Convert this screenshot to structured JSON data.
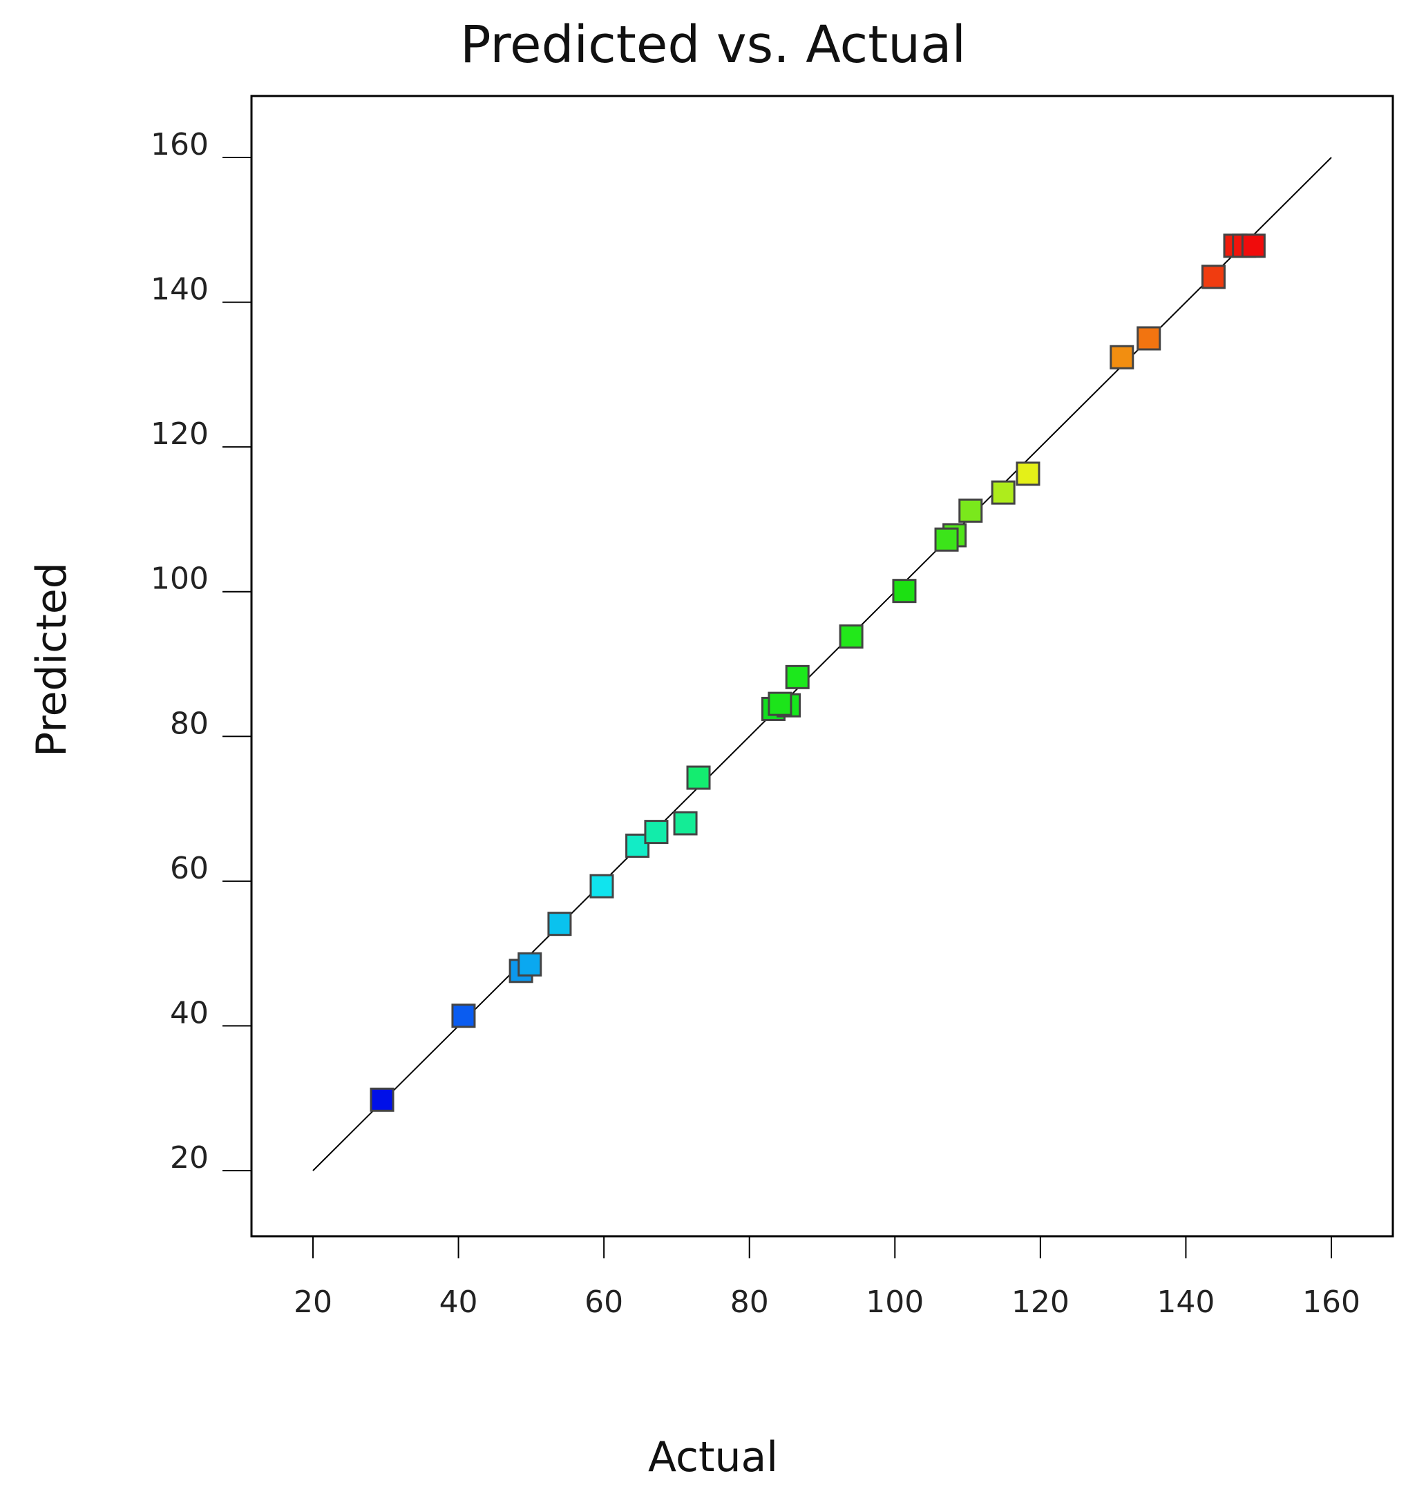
{
  "chart_data": {
    "type": "scatter",
    "title": "Predicted vs. Actual",
    "xlabel": "Actual",
    "ylabel": "Predicted",
    "xlim": [
      20,
      160
    ],
    "ylim": [
      20,
      160
    ],
    "xticks": [
      "20",
      "40",
      "60",
      "80",
      "100",
      "120",
      "140",
      "160"
    ],
    "yticks": [
      "20",
      "40",
      "60",
      "80",
      "100",
      "120",
      "140",
      "160"
    ],
    "grid": false,
    "legend": "none",
    "reference_line": {
      "from": [
        20,
        20
      ],
      "to": [
        160,
        160
      ],
      "color": "#000000"
    },
    "marker": "square",
    "colormap": "rainbow (blue low, red high)",
    "points": [
      {
        "x": 29.5,
        "y": 29.8,
        "color": "#0010e8"
      },
      {
        "x": 40.7,
        "y": 41.4,
        "color": "#0a5cf0"
      },
      {
        "x": 48.6,
        "y": 47.6,
        "color": "#0c98ee"
      },
      {
        "x": 49.8,
        "y": 48.5,
        "color": "#0aa8f0"
      },
      {
        "x": 53.9,
        "y": 54.1,
        "color": "#0ac2ee"
      },
      {
        "x": 59.7,
        "y": 59.3,
        "color": "#10e4ee"
      },
      {
        "x": 64.6,
        "y": 64.9,
        "color": "#12ecc6"
      },
      {
        "x": 67.2,
        "y": 66.8,
        "color": "#12ecaa"
      },
      {
        "x": 71.2,
        "y": 68.0,
        "color": "#14ec96"
      },
      {
        "x": 73.0,
        "y": 74.3,
        "color": "#14ec70"
      },
      {
        "x": 83.3,
        "y": 83.8,
        "color": "#12e020"
      },
      {
        "x": 85.4,
        "y": 84.3,
        "color": "#16e81c"
      },
      {
        "x": 84.2,
        "y": 84.5,
        "color": "#1ce41a"
      },
      {
        "x": 86.6,
        "y": 88.2,
        "color": "#1ce81c"
      },
      {
        "x": 94.0,
        "y": 93.8,
        "color": "#22e81a"
      },
      {
        "x": 101.3,
        "y": 100.1,
        "color": "#1ce012"
      },
      {
        "x": 108.2,
        "y": 107.8,
        "color": "#50e41a"
      },
      {
        "x": 107.1,
        "y": 107.2,
        "color": "#3ce41a"
      },
      {
        "x": 110.4,
        "y": 111.2,
        "color": "#7ae81c"
      },
      {
        "x": 114.9,
        "y": 113.7,
        "color": "#aeec1c"
      },
      {
        "x": 118.3,
        "y": 116.3,
        "color": "#e4f018"
      },
      {
        "x": 131.2,
        "y": 132.4,
        "color": "#f28e10"
      },
      {
        "x": 134.9,
        "y": 135.0,
        "color": "#f27410"
      },
      {
        "x": 143.8,
        "y": 143.5,
        "color": "#f03c10"
      },
      {
        "x": 146.8,
        "y": 147.8,
        "color": "#f01c0c"
      },
      {
        "x": 148.0,
        "y": 147.8,
        "color": "#f0140c"
      },
      {
        "x": 149.3,
        "y": 147.8,
        "color": "#f00c0c"
      }
    ]
  }
}
